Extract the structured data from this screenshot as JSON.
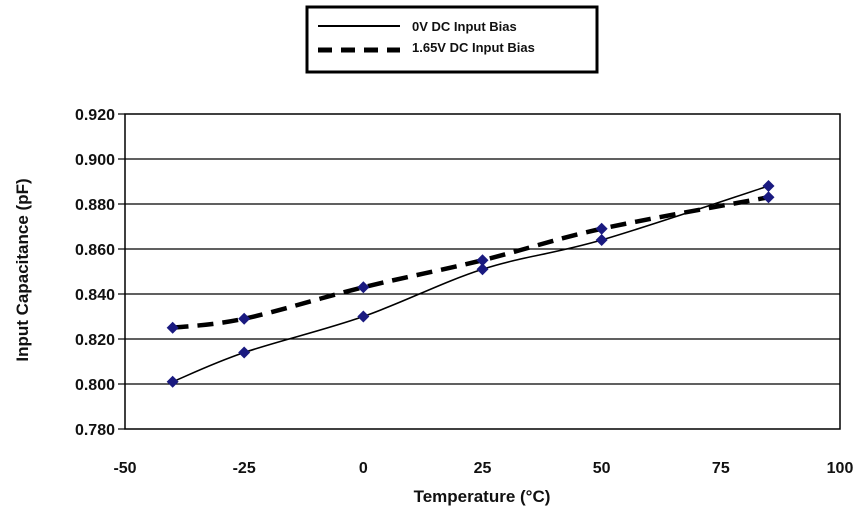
{
  "chart_data": {
    "type": "line",
    "title": "",
    "xlabel": "Temperature (°C)",
    "ylabel": "Input Capacitance (pF)",
    "xlim": [
      -50,
      100
    ],
    "ylim": [
      0.78,
      0.92
    ],
    "x_ticks": [
      "-50",
      "-25",
      "0",
      "25",
      "50",
      "75",
      "100"
    ],
    "y_ticks": [
      "0.920",
      "0.900",
      "0.880",
      "0.860",
      "0.840",
      "0.820",
      "0.800",
      "0.780"
    ],
    "grid": "horizontal",
    "legend_position": "top-center",
    "marker": "diamond",
    "marker_color": "#1a1a80",
    "series": [
      {
        "name": "0V DC Input Bias",
        "line_style": "solid",
        "color": "#000000",
        "x": [
          -40,
          -25,
          0,
          25,
          50,
          85
        ],
        "y": [
          0.801,
          0.814,
          0.83,
          0.851,
          0.864,
          0.888
        ]
      },
      {
        "name": "1.65V DC Input Bias",
        "line_style": "dashed",
        "color": "#000000",
        "x": [
          -40,
          -25,
          0,
          25,
          50,
          85
        ],
        "y": [
          0.825,
          0.829,
          0.843,
          0.855,
          0.869,
          0.883
        ]
      }
    ]
  }
}
